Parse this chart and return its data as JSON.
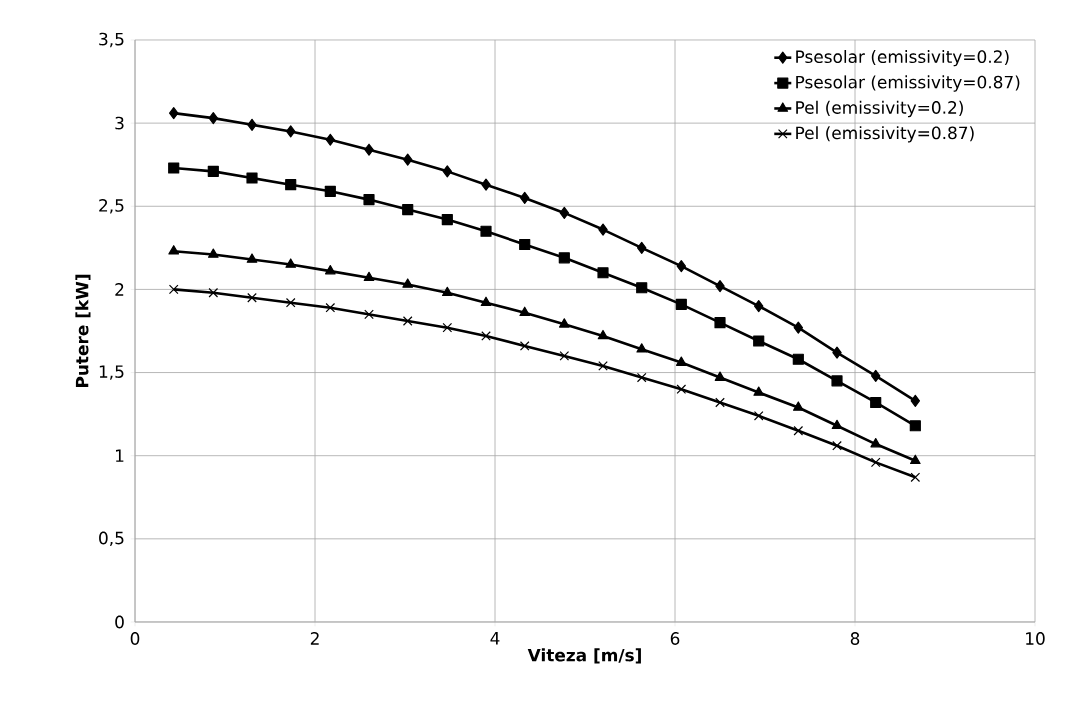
{
  "chart_data": {
    "type": "line",
    "xlabel": "Viteza [m/s]",
    "ylabel": "Putere [kW]",
    "x": [
      0.43,
      0.87,
      1.3,
      1.73,
      2.17,
      2.6,
      3.03,
      3.47,
      3.9,
      4.33,
      4.77,
      5.2,
      5.63,
      6.07,
      6.5,
      6.93,
      7.37,
      7.8,
      8.23,
      8.67
    ],
    "series": [
      {
        "name": "Psesolar (emissivity=0.2)",
        "color": "#000000",
        "marker": "diamond",
        "values": [
          3.06,
          3.03,
          2.99,
          2.95,
          2.9,
          2.84,
          2.78,
          2.71,
          2.63,
          2.55,
          2.46,
          2.36,
          2.25,
          2.14,
          2.02,
          1.9,
          1.77,
          1.62,
          1.48,
          1.33
        ]
      },
      {
        "name": "Psesolar (emissivity=0.87)",
        "color": "#000000",
        "marker": "square",
        "values": [
          2.73,
          2.71,
          2.67,
          2.63,
          2.59,
          2.54,
          2.48,
          2.42,
          2.35,
          2.27,
          2.19,
          2.1,
          2.01,
          1.91,
          1.8,
          1.69,
          1.58,
          1.45,
          1.32,
          1.18
        ]
      },
      {
        "name": "Pel (emissivity=0.2)",
        "color": "#000000",
        "marker": "triangle",
        "values": [
          2.23,
          2.21,
          2.18,
          2.15,
          2.11,
          2.07,
          2.03,
          1.98,
          1.92,
          1.86,
          1.79,
          1.72,
          1.64,
          1.56,
          1.47,
          1.38,
          1.29,
          1.18,
          1.07,
          0.97
        ]
      },
      {
        "name": "Pel (emissivity=0.87)",
        "color": "#000000",
        "marker": "cross",
        "values": [
          2.0,
          1.98,
          1.95,
          1.92,
          1.89,
          1.85,
          1.81,
          1.77,
          1.72,
          1.66,
          1.6,
          1.54,
          1.47,
          1.4,
          1.32,
          1.24,
          1.15,
          1.06,
          0.96,
          0.87
        ]
      }
    ],
    "xlim": [
      0,
      10
    ],
    "xticks": [
      0,
      2,
      4,
      6,
      8,
      10
    ],
    "ylim": [
      0,
      3.5
    ],
    "yticks": [
      0,
      {
        "value": 0.5,
        "label": "0,5"
      },
      1,
      {
        "value": 1.5,
        "label": "1,5"
      },
      2,
      {
        "value": 2.5,
        "label": "2,5"
      },
      3,
      {
        "value": 3.5,
        "label": "3,5"
      }
    ],
    "grid": true,
    "legend": "top right",
    "line_style": "solid"
  }
}
